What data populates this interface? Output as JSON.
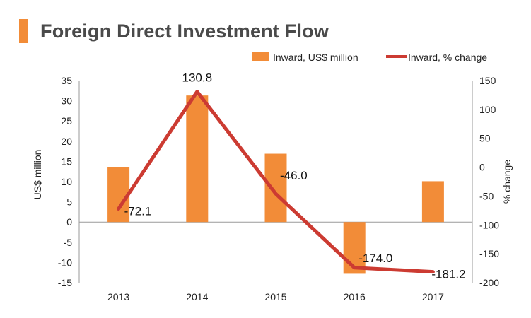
{
  "title": "Foreign Direct Investment Flow",
  "colors": {
    "bar": "#f28c38",
    "line": "#cc3b32",
    "axis": "#9a9a9a",
    "title_bar": "#f28c38"
  },
  "chart_data": {
    "type": "bar+line",
    "categories": [
      "2013",
      "2014",
      "2015",
      "2016",
      "2017"
    ],
    "series": [
      {
        "name": "Inward, US$ million",
        "type": "bar",
        "axis": "left",
        "values": [
          13.6,
          31.3,
          16.9,
          -12.8,
          10.1
        ]
      },
      {
        "name": "Inward, % change",
        "type": "line",
        "axis": "right",
        "values": [
          -72.1,
          130.8,
          -46.0,
          -174.0,
          -181.2
        ],
        "labels": [
          "-72.1",
          "130.8",
          "-46.0",
          "-174.0",
          "-181.2"
        ]
      }
    ],
    "y_left": {
      "label": "US$ million",
      "ylim": [
        -15,
        35
      ],
      "ticks": [
        35,
        30,
        25,
        20,
        15,
        10,
        5,
        0,
        -5,
        -10,
        -15
      ]
    },
    "y_right": {
      "label": "% change",
      "ylim": [
        -200,
        150
      ],
      "ticks": [
        150,
        100,
        50,
        0,
        -50,
        -100,
        -150,
        -200
      ]
    },
    "legend_position": "top-right"
  }
}
